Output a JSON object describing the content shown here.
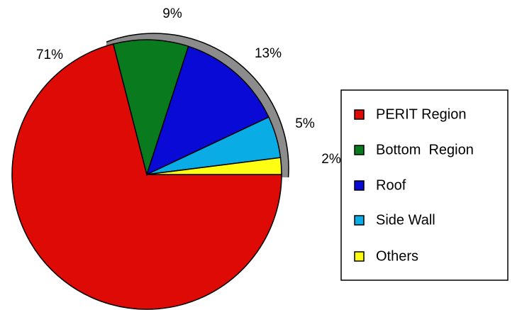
{
  "chart_data": {
    "type": "pie",
    "categories": [
      "PERIT Region",
      "Bottom  Region",
      "Roof",
      "Side Wall",
      "Others"
    ],
    "values": [
      71,
      9,
      13,
      5,
      2
    ],
    "value_labels": [
      "71%",
      "9%",
      "13%",
      "5%",
      "2%"
    ],
    "colors": [
      "#dd0a05",
      "#0a7a1e",
      "#0a0ad6",
      "#0aace6",
      "#ffff14"
    ],
    "legend": "right"
  }
}
